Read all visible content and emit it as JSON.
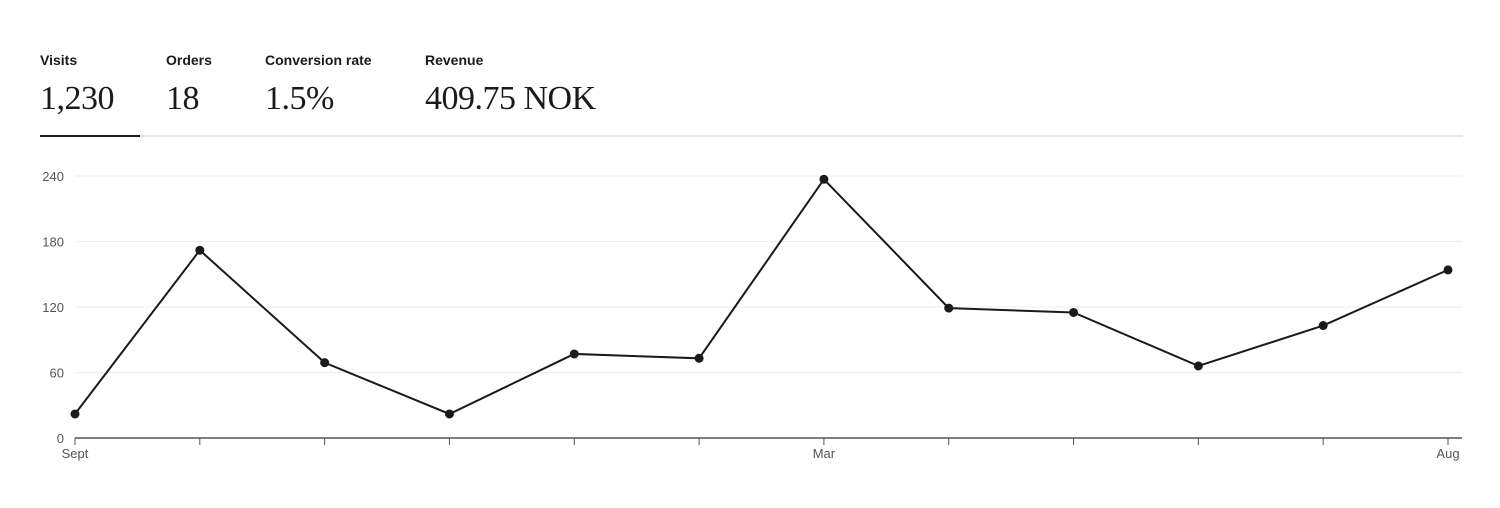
{
  "metrics": [
    {
      "label": "Visits",
      "value": "1,230",
      "active": true
    },
    {
      "label": "Orders",
      "value": "18",
      "active": false
    },
    {
      "label": "Conversion rate",
      "value": "1.5%",
      "active": false
    },
    {
      "label": "Revenue",
      "value": "409.75 NOK",
      "active": false
    }
  ],
  "colors": {
    "line": "#1a1a1a",
    "grid": "#ececec",
    "axis": "#555555"
  },
  "chart_data": {
    "type": "line",
    "title": "",
    "xlabel": "",
    "ylabel": "",
    "x_tick_labels": [
      "Sept",
      "",
      "",
      "",
      "",
      "",
      "Mar",
      "",
      "",
      "",
      "",
      "Aug"
    ],
    "values": [
      22,
      172,
      69,
      22,
      77,
      73,
      237,
      119,
      115,
      66,
      103,
      154
    ],
    "ylim": [
      0,
      240
    ],
    "yticks": [
      0,
      60,
      120,
      180,
      240
    ],
    "grid": true,
    "legend": "none"
  }
}
